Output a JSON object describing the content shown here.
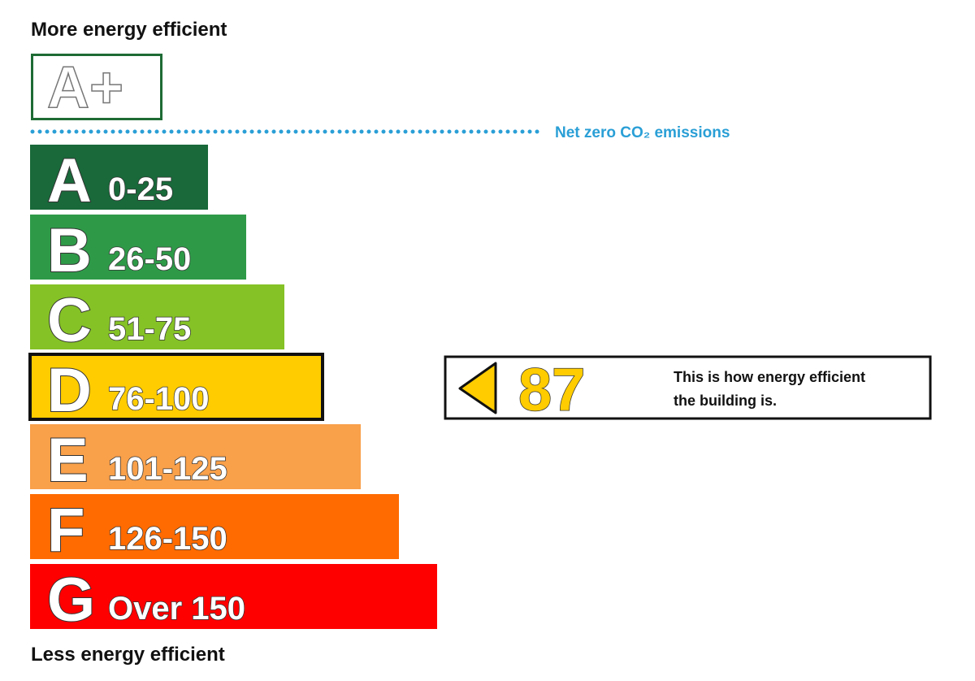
{
  "header": {
    "title": "More energy efficient"
  },
  "aplus": {
    "label": "A+",
    "color": "#1e6b35"
  },
  "net_zero": {
    "label": "Net zero CO₂ emissions",
    "color": "#2a9fd6"
  },
  "bands": [
    {
      "letter": "A",
      "range": "0-25",
      "color": "#19693a"
    },
    {
      "letter": "B",
      "range": "26-50",
      "color": "#2e9a48"
    },
    {
      "letter": "C",
      "range": "51-75",
      "color": "#85c226"
    },
    {
      "letter": "D",
      "range": "76-100",
      "color": "#ffcc00",
      "highlight": true
    },
    {
      "letter": "E",
      "range": "101-125",
      "color": "#f9a04a"
    },
    {
      "letter": "F",
      "range": "126-150",
      "color": "#ff6b00"
    },
    {
      "letter": "G",
      "range": "Over 150",
      "color": "#ff0000"
    }
  ],
  "rating": {
    "value": 87,
    "lines": [
      "This is how energy efficient",
      "the building is."
    ]
  },
  "footer": {
    "title": "Less energy efficient"
  }
}
